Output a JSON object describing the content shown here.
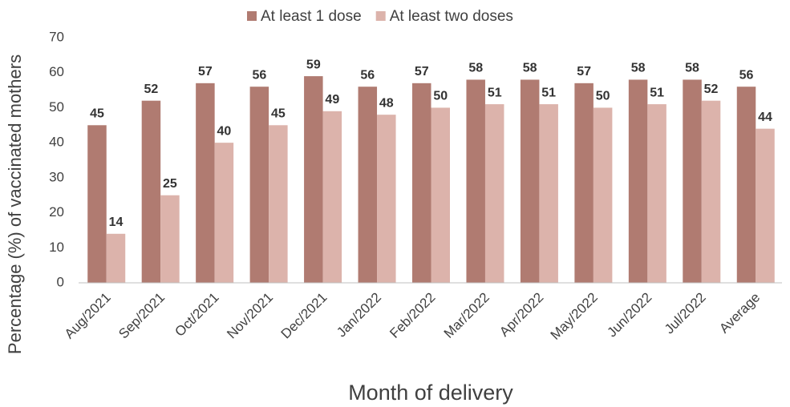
{
  "chart_data": {
    "type": "bar",
    "x_label": "Month of delivery",
    "y_label": "Percentage (%) of  vaccinated mothers",
    "categories": [
      "Aug/2021",
      "Sep/2021",
      "Oct/2021",
      "Nov/2021",
      "Dec/2021",
      "Jan/2022",
      "Feb/2022",
      "Mar/2022",
      "Apr/2022",
      "May/2022",
      "Jun/2022",
      "Jul/2022",
      "Average"
    ],
    "series": [
      {
        "name": "At least 1 dose",
        "color": "#b07b71",
        "values": [
          45,
          52,
          57,
          56,
          59,
          56,
          57,
          58,
          58,
          57,
          58,
          58,
          56
        ]
      },
      {
        "name": "At least two doses",
        "color": "#dcb3ab",
        "values": [
          14,
          25,
          40,
          45,
          49,
          48,
          50,
          51,
          51,
          50,
          51,
          52,
          44
        ]
      }
    ],
    "ylim": [
      0,
      70
    ],
    "yticks": [
      0,
      10,
      20,
      30,
      40,
      50,
      60,
      70
    ],
    "grid": false,
    "legend": "top"
  }
}
